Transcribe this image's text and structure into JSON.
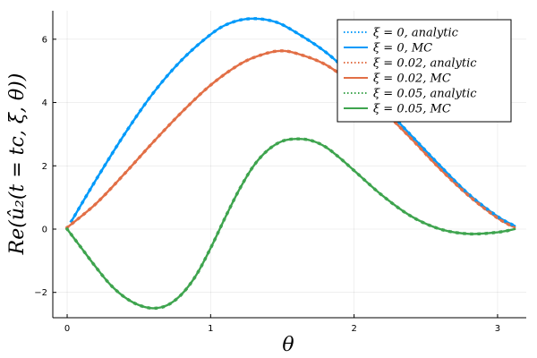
{
  "chart_data": {
    "type": "line",
    "xlabel": "θ",
    "ylabel": "Re(û₂(t = tc, ξ, θ))",
    "xlim": [
      -0.1,
      3.2
    ],
    "ylim": [
      -2.8,
      6.9
    ],
    "xticks": [
      0,
      1,
      2,
      3
    ],
    "yticks": [
      -2,
      0,
      2,
      4,
      6
    ],
    "x_tick_labels": [
      "0",
      "1",
      "2",
      "3"
    ],
    "y_tick_labels": [
      "−2",
      "0",
      "2",
      "4",
      "6"
    ],
    "grid": true,
    "legend_position": "top-right",
    "series": [
      {
        "name": "ξ = 0, analytic",
        "style": "dotted",
        "color": "#009AFA",
        "x": [
          0.03,
          0.2,
          0.4,
          0.6,
          0.8,
          1.0,
          1.13,
          1.28,
          1.45,
          1.6,
          1.8,
          2.0,
          2.2,
          2.4,
          2.6,
          2.8,
          3.0,
          3.12
        ],
        "y": [
          0.25,
          1.55,
          3.0,
          4.3,
          5.35,
          6.15,
          6.5,
          6.65,
          6.55,
          6.2,
          5.6,
          4.8,
          3.9,
          2.95,
          2.0,
          1.1,
          0.4,
          0.1
        ]
      },
      {
        "name": "ξ = 0, MC",
        "style": "solid",
        "color": "#009AFA",
        "x": [
          0.03,
          0.2,
          0.4,
          0.6,
          0.8,
          1.0,
          1.13,
          1.28,
          1.45,
          1.6,
          1.8,
          2.0,
          2.2,
          2.4,
          2.6,
          2.8,
          3.0,
          3.12
        ],
        "y": [
          0.25,
          1.55,
          3.0,
          4.3,
          5.35,
          6.15,
          6.5,
          6.65,
          6.55,
          6.2,
          5.6,
          4.8,
          3.9,
          2.95,
          2.0,
          1.1,
          0.4,
          0.1
        ]
      },
      {
        "name": "ξ = 0.02, analytic",
        "style": "dotted",
        "color": "#E26F46",
        "x": [
          0.0,
          0.2,
          0.4,
          0.6,
          0.8,
          1.0,
          1.2,
          1.35,
          1.48,
          1.6,
          1.8,
          2.0,
          2.2,
          2.4,
          2.6,
          2.8,
          3.0,
          3.12
        ],
        "y": [
          0.05,
          0.8,
          1.75,
          2.75,
          3.7,
          4.55,
          5.2,
          5.5,
          5.63,
          5.55,
          5.2,
          4.55,
          3.75,
          2.85,
          1.9,
          1.05,
          0.35,
          0.05
        ]
      },
      {
        "name": "ξ = 0.02, MC",
        "style": "solid",
        "color": "#E26F46",
        "x": [
          0.0,
          0.2,
          0.4,
          0.6,
          0.8,
          1.0,
          1.2,
          1.35,
          1.48,
          1.6,
          1.8,
          2.0,
          2.2,
          2.4,
          2.6,
          2.8,
          3.0,
          3.12
        ],
        "y": [
          0.05,
          0.8,
          1.75,
          2.75,
          3.7,
          4.55,
          5.2,
          5.5,
          5.63,
          5.55,
          5.2,
          4.55,
          3.75,
          2.85,
          1.9,
          1.05,
          0.35,
          0.05
        ]
      },
      {
        "name": "ξ = 0.05, analytic",
        "style": "dotted",
        "color": "#3EA44E",
        "x": [
          0.0,
          0.1,
          0.2,
          0.3,
          0.4,
          0.5,
          0.6,
          0.7,
          0.8,
          0.9,
          1.0,
          1.1,
          1.2,
          1.3,
          1.4,
          1.5,
          1.6,
          1.7,
          1.8,
          1.9,
          2.0,
          2.2,
          2.4,
          2.6,
          2.8,
          3.0,
          3.12
        ],
        "y": [
          0.0,
          -0.6,
          -1.2,
          -1.75,
          -2.15,
          -2.4,
          -2.5,
          -2.4,
          -2.05,
          -1.45,
          -0.6,
          0.35,
          1.25,
          2.0,
          2.5,
          2.78,
          2.85,
          2.8,
          2.6,
          2.25,
          1.85,
          1.05,
          0.4,
          0.0,
          -0.15,
          -0.1,
          0.0
        ]
      },
      {
        "name": "ξ = 0.05, MC",
        "style": "solid",
        "color": "#3EA44E",
        "x": [
          0.0,
          0.1,
          0.2,
          0.3,
          0.4,
          0.5,
          0.6,
          0.7,
          0.8,
          0.9,
          1.0,
          1.1,
          1.2,
          1.3,
          1.4,
          1.5,
          1.6,
          1.7,
          1.8,
          1.9,
          2.0,
          2.2,
          2.4,
          2.6,
          2.8,
          3.0,
          3.12
        ],
        "y": [
          0.0,
          -0.6,
          -1.2,
          -1.75,
          -2.15,
          -2.4,
          -2.5,
          -2.4,
          -2.05,
          -1.45,
          -0.6,
          0.35,
          1.25,
          2.0,
          2.5,
          2.78,
          2.85,
          2.8,
          2.6,
          2.25,
          1.85,
          1.05,
          0.4,
          0.0,
          -0.15,
          -0.1,
          0.0
        ]
      }
    ]
  }
}
